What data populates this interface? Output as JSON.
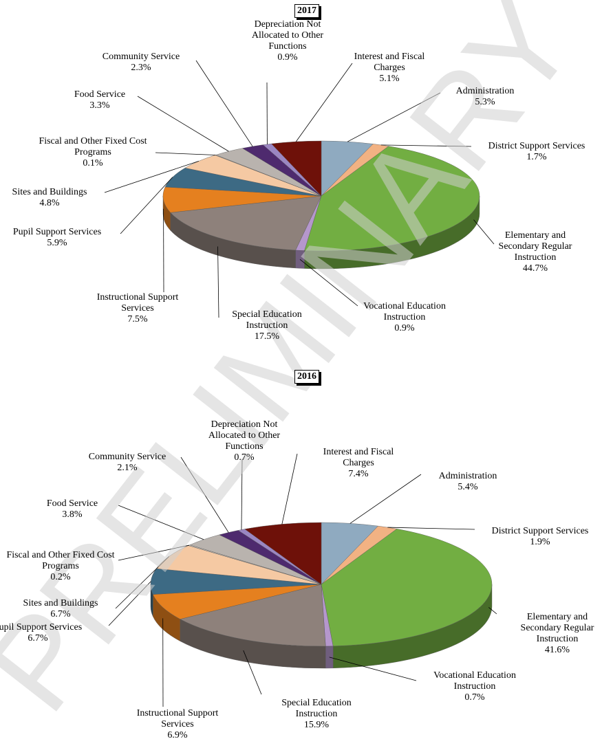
{
  "watermark": "PRELIMINARY",
  "chart_data": [
    {
      "type": "pie3d",
      "title": "2017",
      "categories": [
        "Administration",
        "District Support Services",
        "Elementary and Secondary Regular Instruction",
        "Vocational Education Instruction",
        "Special Education Instruction",
        "Instructional Support Services",
        "Pupil Support Services",
        "Sites and Buildings",
        "Fiscal and Other Fixed Cost Programs",
        "Food Service",
        "Community Service",
        "Depreciation Not Allocated to Other Functions",
        "Interest and Fiscal Charges"
      ],
      "values": [
        5.3,
        1.7,
        44.7,
        0.9,
        17.5,
        7.5,
        5.9,
        4.8,
        0.1,
        3.3,
        2.3,
        0.9,
        5.1
      ],
      "value_labels": [
        "5.3%",
        "1.7%",
        "44.7%",
        "0.9%",
        "17.5%",
        "7.5%",
        "5.9%",
        "4.8%",
        "0.1%",
        "3.3%",
        "2.3%",
        "0.9%",
        "5.1%"
      ],
      "colors": [
        "#8faac0",
        "#f2b283",
        "#72ae42",
        "#b597cc",
        "#8e817b",
        "#e5801f",
        "#3d6a84",
        "#f5c9a3",
        "#c9c2ba",
        "#b9b3ae",
        "#4e2a6e",
        "#9b86c2",
        "#6e1109"
      ]
    },
    {
      "type": "pie3d",
      "title": "2016",
      "categories": [
        "Administration",
        "District Support Services",
        "Elementary and Secondary Regular Instruction",
        "Vocational Education Instruction",
        "Special Education Instruction",
        "Instructional Support Services",
        "Pupil Support Services",
        "Sites and Buildings",
        "Fiscal and Other Fixed Cost Programs",
        "Food Service",
        "Community Service",
        "Depreciation Not Allocated to Other Functions",
        "Interest and Fiscal Charges"
      ],
      "values": [
        5.4,
        1.9,
        41.6,
        0.7,
        15.9,
        6.9,
        6.7,
        6.7,
        0.2,
        3.8,
        2.1,
        0.7,
        7.4
      ],
      "value_labels": [
        "5.4%",
        "1.9%",
        "41.6%",
        "0.7%",
        "15.9%",
        "6.9%",
        "6.7%",
        "6.7%",
        "0.2%",
        "3.8%",
        "2.1%",
        "0.7%",
        "7.4%"
      ],
      "colors": [
        "#8faac0",
        "#f2b283",
        "#72ae42",
        "#b597cc",
        "#8e817b",
        "#e5801f",
        "#3d6a84",
        "#f5c9a3",
        "#c9c2ba",
        "#b9b3ae",
        "#4e2a6e",
        "#9b86c2",
        "#6e1109"
      ]
    }
  ]
}
